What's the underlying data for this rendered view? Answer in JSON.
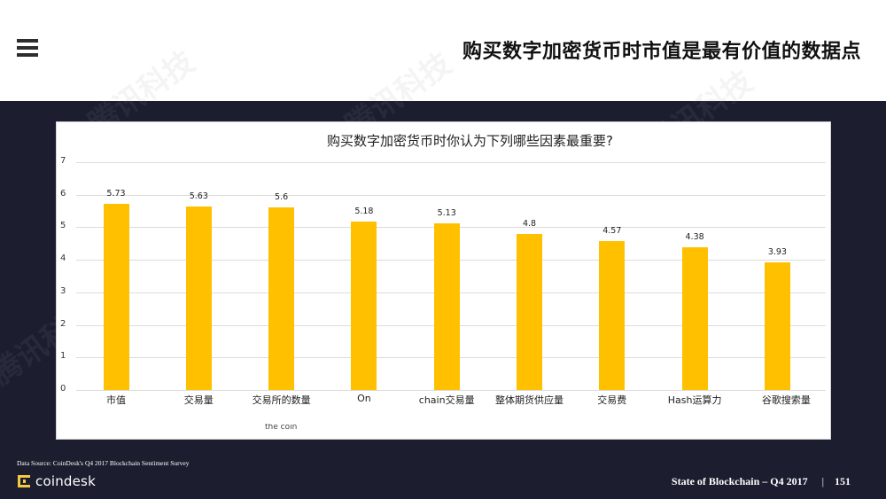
{
  "header": {
    "menu_icon": "hamburger-menu-icon",
    "title": "购买数字加密货币时市值是最有价值的数据点"
  },
  "chart": {
    "title": "购买数字加密货币时你认为下列哪些因素最重要?",
    "bar_color": "#ffc000",
    "overflow_text": "the coin"
  },
  "chart_data": {
    "type": "bar",
    "title": "购买数字加密货币时你认为下列哪些因素最重要?",
    "xlabel": "",
    "ylabel": "",
    "ylim": [
      0,
      7
    ],
    "yticks": [
      0,
      1,
      2,
      3,
      4,
      5,
      6,
      7
    ],
    "grid": true,
    "legend": "none",
    "categories": [
      "市值",
      "交易量",
      "交易所的数量",
      "On",
      "chain交易量",
      "整体期货供应量",
      "交易费",
      "Hash运算力",
      "谷歌搜索量"
    ],
    "values": [
      5.73,
      5.63,
      5.6,
      5.18,
      5.13,
      4.8,
      4.57,
      4.38,
      3.93
    ],
    "value_labels": [
      "5.73",
      "5.63",
      "5.6",
      "5.18",
      "5.13",
      "4.8",
      "4.57",
      "4.38",
      "3.93"
    ]
  },
  "footer": {
    "source": "Data Source: CoinDesk's Q4 2017 Blockchain Sentiment Survey",
    "logo_text": "coindesk",
    "report": "State of Blockchain – Q4 2017",
    "separator": "|",
    "page_number": "151"
  },
  "watermark": "腾讯科技",
  "colors": {
    "dark_band": "#1c1e2f",
    "bar": "#ffc000",
    "logo_accent": "#f5c842"
  }
}
